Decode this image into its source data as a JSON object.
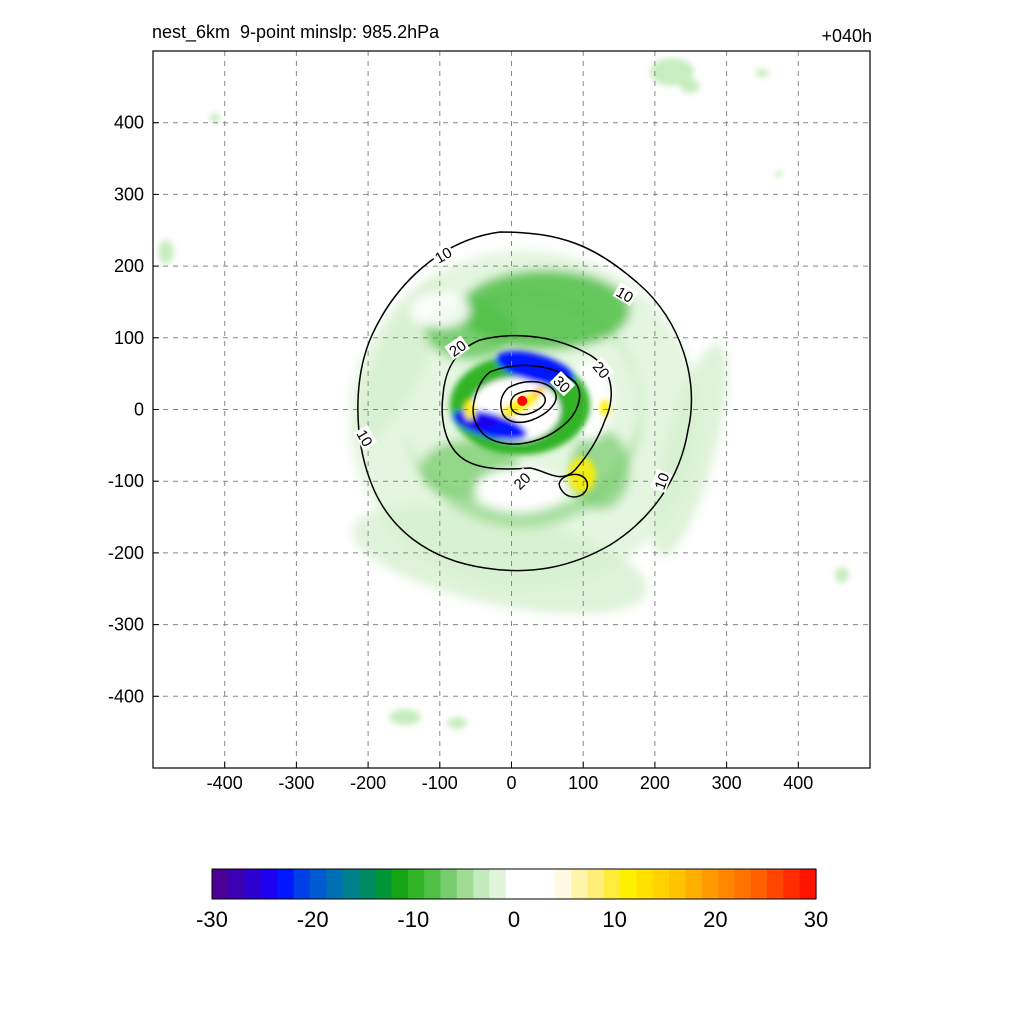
{
  "header": {
    "title": "nest_6km  9-point minslp: 985.2hPa",
    "time_label": "+040h"
  },
  "chart_data": {
    "type": "heatmap",
    "title": "nest_6km  9-point minslp: 985.2hPa",
    "subtitle": "+040h",
    "xlabel": "",
    "ylabel": "",
    "xlim": [
      -500,
      500
    ],
    "ylim": [
      -500,
      500
    ],
    "x_ticks": [
      -400,
      -300,
      -200,
      -100,
      0,
      100,
      200,
      300,
      400
    ],
    "y_ticks": [
      400,
      300,
      200,
      100,
      0,
      -100,
      -200,
      -300,
      -400
    ],
    "grid": true,
    "grid_style": "dashed",
    "colorbar": {
      "min": -30,
      "max": 30,
      "ticks": [
        -30,
        -20,
        -10,
        0,
        10,
        20,
        30
      ],
      "colors": [
        "#4b0096",
        "#3c00b4",
        "#2d00d2",
        "#1e00f0",
        "#0018ff",
        "#0040e8",
        "#005ad2",
        "#0070b4",
        "#00808c",
        "#008a64",
        "#009638",
        "#14a414",
        "#32b428",
        "#50c046",
        "#78cc6e",
        "#a0dc96",
        "#c4ebbe",
        "#e1f5dc",
        "#ffffff",
        "#ffffff",
        "#ffffff",
        "#fffae1",
        "#fff5aa",
        "#ffef78",
        "#ffeb3c",
        "#fff000",
        "#ffe100",
        "#ffd200",
        "#ffc300",
        "#ffaf00",
        "#ff9b00",
        "#ff8700",
        "#ff7300",
        "#ff5f00",
        "#ff4600",
        "#ff2d00",
        "#ff1400"
      ]
    },
    "contour_labels": [
      {
        "value": "10",
        "x": -95,
        "y": 215,
        "angle": -30
      },
      {
        "value": "10",
        "x": 158,
        "y": 160,
        "angle": 30
      },
      {
        "value": "10",
        "x": 210,
        "y": -100,
        "angle": -70
      },
      {
        "value": "10",
        "x": -205,
        "y": -40,
        "angle": 60
      },
      {
        "value": "20",
        "x": -75,
        "y": 85,
        "angle": -35
      },
      {
        "value": "20",
        "x": 125,
        "y": 55,
        "angle": 50
      },
      {
        "value": "20",
        "x": 15,
        "y": -100,
        "angle": -45
      },
      {
        "value": "30",
        "x": 70,
        "y": 35,
        "angle": 45
      }
    ],
    "storm_center": {
      "x": 15,
      "y": 12,
      "color": "#ff0000"
    },
    "tick_labels": {
      "x": [
        "-400",
        "-300",
        "-200",
        "-100",
        "0",
        "100",
        "200",
        "300",
        "400"
      ],
      "y": [
        "400",
        "300",
        "200",
        "100",
        "0",
        "-100",
        "-200",
        "-300",
        "-400"
      ],
      "colorbar": [
        "-30",
        "-20",
        "-10",
        "0",
        "10",
        "20",
        "30"
      ]
    }
  }
}
